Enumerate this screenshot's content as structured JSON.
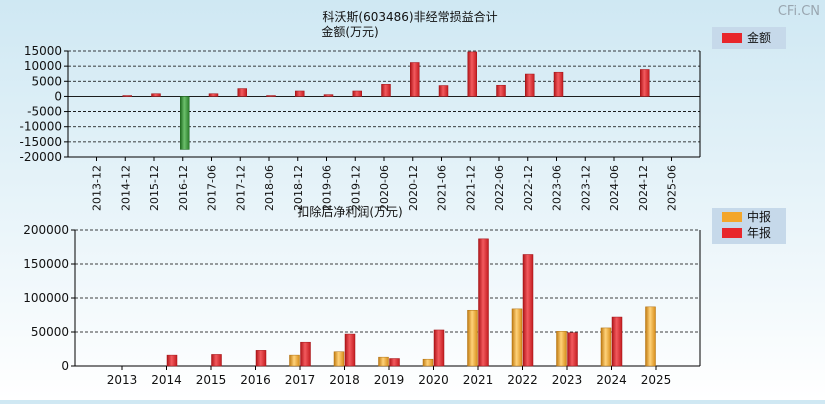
{
  "watermark": "CFi.CN",
  "colors": {
    "annual": "#e8262b",
    "annual_dark": "#b01418",
    "negative": "#3d9a3d",
    "negative_dark": "#1f6a1f",
    "interim": "#f4a62a",
    "interim_dark": "#c07a10",
    "legend_bg": "#c6d9ea"
  },
  "chart_data": [
    {
      "type": "bar",
      "title": "科沃斯(603486)非经常损益合计",
      "subtitle": "金额(万元)",
      "legend": [
        {
          "label": "金额",
          "color": "#e8262b"
        }
      ],
      "legend_position": "top-right",
      "grid": true,
      "ylim": [
        -20000,
        15000
      ],
      "yticks": [
        15000,
        10000,
        5000,
        0,
        -5000,
        -10000,
        -15000,
        -20000
      ],
      "categories": [
        "2013-12",
        "2014-12",
        "2015-12",
        "2016-12",
        "2017-06",
        "2017-12",
        "2018-06",
        "2018-12",
        "2019-06",
        "2019-12",
        "2020-06",
        "2020-12",
        "2021-06",
        "2021-12",
        "2022-06",
        "2022-12",
        "2023-06",
        "2023-12",
        "2024-06",
        "2024-12",
        "2025-06"
      ],
      "values": [
        0,
        300,
        900,
        -17500,
        900,
        2600,
        300,
        1800,
        600,
        1800,
        4000,
        11200,
        3600,
        14700,
        3700,
        7400,
        8000,
        0,
        0,
        8900,
        0
      ]
    },
    {
      "type": "bar",
      "title": "扣除后净利润(万元)",
      "legend": [
        {
          "label": "中报",
          "color": "#f4a62a"
        },
        {
          "label": "年报",
          "color": "#e8262b"
        }
      ],
      "legend_position": "top-right",
      "grid": true,
      "ylim": [
        0,
        200000
      ],
      "yticks": [
        200000,
        150000,
        100000,
        50000,
        0
      ],
      "categories": [
        "2013",
        "2014",
        "2015",
        "2016",
        "2017",
        "2018",
        "2019",
        "2020",
        "2021",
        "2022",
        "2023",
        "2024",
        "2025"
      ],
      "series": [
        {
          "name": "中报",
          "values": [
            null,
            null,
            null,
            null,
            16000,
            21000,
            13000,
            10000,
            82000,
            84000,
            51000,
            56000,
            87000
          ]
        },
        {
          "name": "年报",
          "values": [
            null,
            16000,
            17000,
            23000,
            35000,
            47000,
            11000,
            53000,
            187000,
            164000,
            49000,
            72000,
            null
          ]
        }
      ]
    }
  ]
}
